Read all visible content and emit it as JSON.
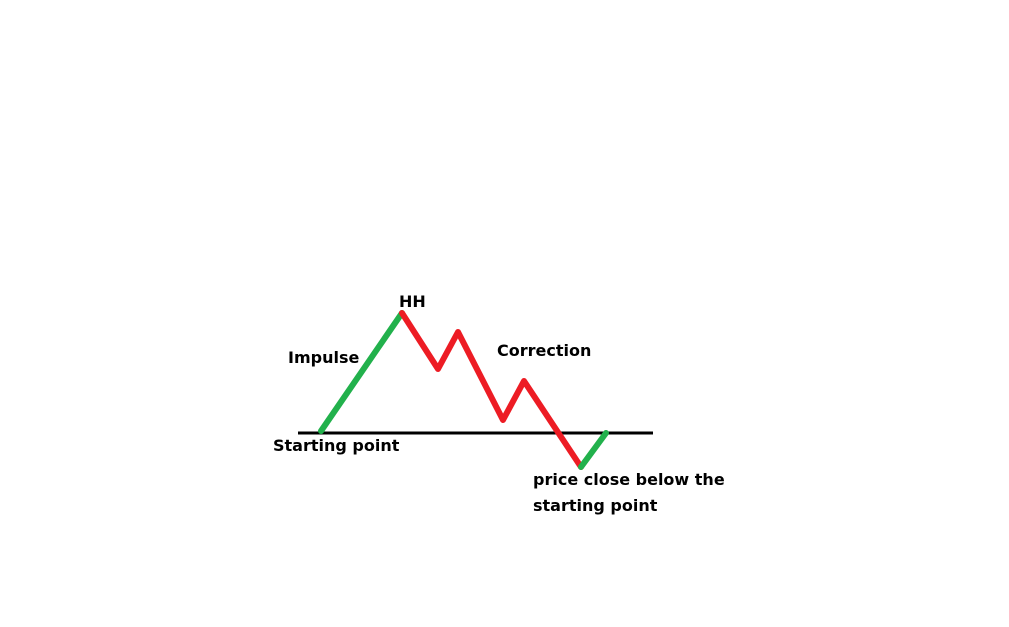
{
  "labels": {
    "hh": "HH",
    "impulse": "Impulse",
    "correction": "Correction",
    "starting_point": "Starting point",
    "close_below_line1": "price close below the",
    "close_below_line2": "starting point"
  },
  "colors": {
    "impulse": "#22b14c",
    "correction": "#ed1c24",
    "baseline": "#000000",
    "text": "#000000",
    "background": "#ffffff"
  }
}
